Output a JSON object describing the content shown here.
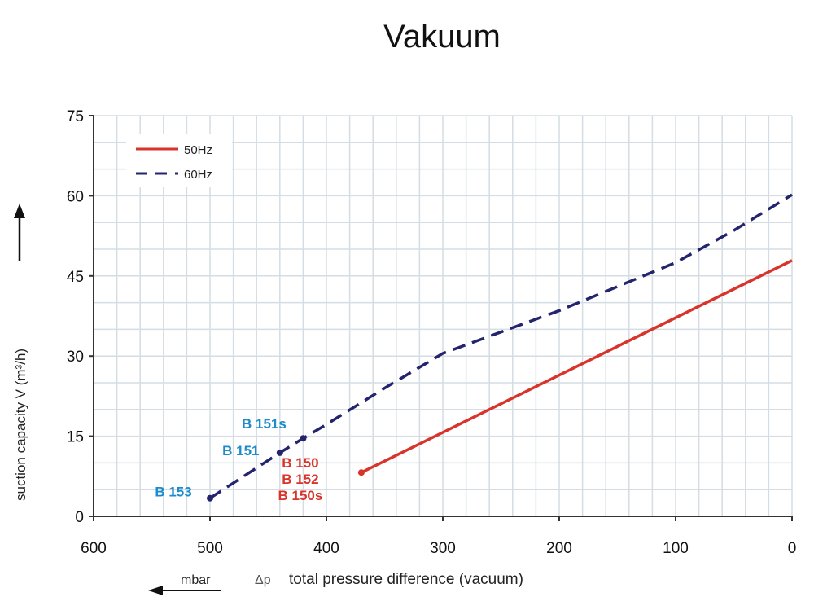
{
  "chart_data": {
    "type": "line",
    "title": "Vakuum",
    "xlabel": "total pressure difference (vacuum)",
    "xlabel_prefix": "Δp",
    "xunit": "mbar",
    "ylabel": "suction capacity V (m³/h)",
    "xlim": [
      600,
      0
    ],
    "ylim": [
      0,
      75
    ],
    "xticks": [
      600,
      500,
      400,
      300,
      200,
      100,
      0
    ],
    "yticks": [
      0,
      15,
      30,
      45,
      60,
      75
    ],
    "grid": true,
    "legend": "top-left",
    "series": [
      {
        "name": "50Hz",
        "color": "#d9342b",
        "dash": false,
        "x": [
          370,
          0
        ],
        "y": [
          8.2,
          47.9
        ]
      },
      {
        "name": "60Hz",
        "color": "#24246e",
        "dash": true,
        "x": [
          500,
          440,
          420,
          400,
          350,
          300,
          250,
          200,
          150,
          100,
          50,
          0
        ],
        "y": [
          3.4,
          11.9,
          14.6,
          17.2,
          24,
          30.5,
          34.5,
          38.5,
          43,
          47.5,
          53.5,
          60.2
        ]
      }
    ],
    "annotations": [
      {
        "text": "B 153",
        "x": 500,
        "y": 3.4,
        "color": "#1a8ccc"
      },
      {
        "text": "B 151",
        "x": 440,
        "y": 11.9,
        "color": "#1a8ccc"
      },
      {
        "text": "B 151s",
        "x": 420,
        "y": 14.6,
        "color": "#1a8ccc"
      },
      {
        "text": "B 150",
        "x": 370,
        "y": 8.2,
        "color": "#d9342b"
      },
      {
        "text": "B 152",
        "x": 370,
        "y": 8.2,
        "color": "#d9342b"
      },
      {
        "text": "B 150s",
        "x": 370,
        "y": 8.2,
        "color": "#d9342b"
      }
    ]
  }
}
